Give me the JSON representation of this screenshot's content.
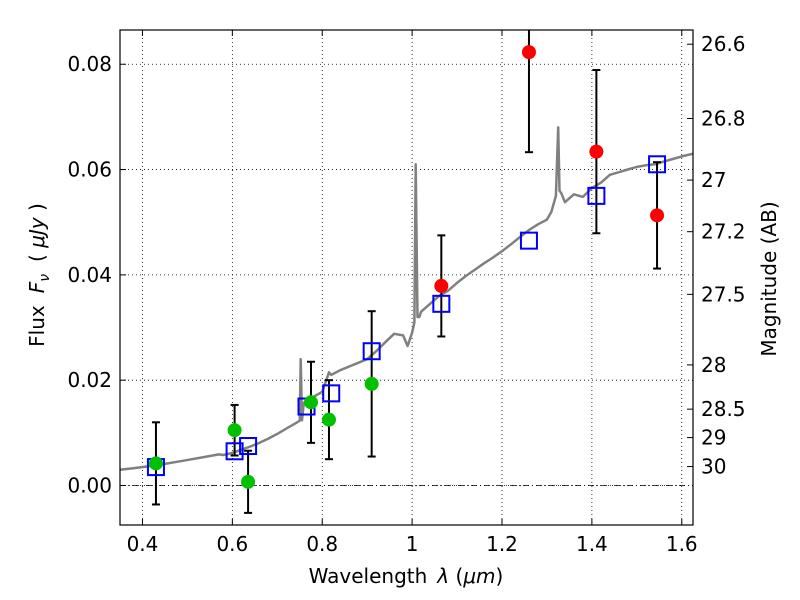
{
  "chart_data": {
    "type": "scatter",
    "xlabel": "Wavelength",
    "xlabel_symbol": "λ",
    "xlabel_unit_open": " (",
    "xlabel_unit": "μm",
    "xlabel_unit_close": ")",
    "ylabel_prefix": "Flux",
    "ylabel_symbol": "F",
    "ylabel_subscript": "ν",
    "ylabel_unit_open": "( ",
    "ylabel_unit": "μJy",
    "ylabel_unit_close": " )",
    "y2label": "Magnitude (AB)",
    "xlim": [
      0.35,
      1.625
    ],
    "ylim": [
      -0.0075,
      0.0865
    ],
    "grid": true,
    "grid_style": "dotted",
    "x_ticks": [
      {
        "value": 0.4,
        "label": "0.4"
      },
      {
        "value": 0.6,
        "label": "0.6"
      },
      {
        "value": 0.8,
        "label": "0.8"
      },
      {
        "value": 1.0,
        "label": "1"
      },
      {
        "value": 1.2,
        "label": "1.2"
      },
      {
        "value": 1.4,
        "label": "1.4"
      },
      {
        "value": 1.6,
        "label": "1.6"
      }
    ],
    "y_ticks": [
      {
        "value": 0.0,
        "label": "0.00"
      },
      {
        "value": 0.02,
        "label": "0.02"
      },
      {
        "value": 0.04,
        "label": "0.04"
      },
      {
        "value": 0.06,
        "label": "0.06"
      },
      {
        "value": 0.08,
        "label": "0.08"
      }
    ],
    "y2_ticks": [
      {
        "flux": 0.0838,
        "label": "26.6"
      },
      {
        "flux": 0.0697,
        "label": "26.8"
      },
      {
        "flux": 0.058,
        "label": "27"
      },
      {
        "flux": 0.0482,
        "label": "27.2"
      },
      {
        "flux": 0.0363,
        "label": "27.5"
      },
      {
        "flux": 0.0229,
        "label": "28"
      },
      {
        "flux": 0.0145,
        "label": "28.5"
      },
      {
        "flux": 0.0091,
        "label": "29"
      },
      {
        "flux": 0.0036,
        "label": "30"
      }
    ],
    "zero_line": {
      "y": 0.0,
      "style": "dash-dot",
      "color": "#000000"
    },
    "model_spectrum": {
      "color": "#808080",
      "x": [
        0.35,
        0.37,
        0.39,
        0.41,
        0.43,
        0.45,
        0.47,
        0.49,
        0.51,
        0.53,
        0.55,
        0.57,
        0.58,
        0.6,
        0.62,
        0.64,
        0.66,
        0.68,
        0.7,
        0.72,
        0.74,
        0.75,
        0.752,
        0.755,
        0.758,
        0.76,
        0.78,
        0.8,
        0.815,
        0.82,
        0.84,
        0.86,
        0.88,
        0.9,
        0.92,
        0.94,
        0.96,
        0.98,
        0.99,
        1.0,
        1.005,
        1.008,
        1.012,
        1.016,
        1.02,
        1.04,
        1.06,
        1.08,
        1.1,
        1.12,
        1.14,
        1.16,
        1.18,
        1.2,
        1.22,
        1.24,
        1.26,
        1.28,
        1.3,
        1.31,
        1.32,
        1.325,
        1.328,
        1.332,
        1.34,
        1.36,
        1.38,
        1.4,
        1.42,
        1.44,
        1.46,
        1.48,
        1.5,
        1.52,
        1.54,
        1.56,
        1.58,
        1.6,
        1.625
      ],
      "y": [
        0.003,
        0.0032,
        0.0034,
        0.0036,
        0.0038,
        0.0041,
        0.0044,
        0.0047,
        0.005,
        0.0053,
        0.0056,
        0.0059,
        0.0058,
        0.0062,
        0.0068,
        0.0074,
        0.0081,
        0.0089,
        0.0098,
        0.0108,
        0.0118,
        0.0123,
        0.024,
        0.0124,
        0.015,
        0.0158,
        0.0168,
        0.0178,
        0.0215,
        0.021,
        0.0219,
        0.0226,
        0.0233,
        0.024,
        0.0255,
        0.0272,
        0.0288,
        0.0285,
        0.0265,
        0.029,
        0.031,
        0.061,
        0.032,
        0.032,
        0.033,
        0.0345,
        0.036,
        0.037,
        0.0385,
        0.0398,
        0.041,
        0.0422,
        0.0433,
        0.0445,
        0.0458,
        0.0472,
        0.0485,
        0.0496,
        0.0505,
        0.052,
        0.055,
        0.068,
        0.056,
        0.0555,
        0.0538,
        0.0553,
        0.0548,
        0.0565,
        0.0575,
        0.059,
        0.0595,
        0.06,
        0.0605,
        0.0608,
        0.061,
        0.0615,
        0.062,
        0.0625,
        0.063
      ]
    },
    "model_points": {
      "color": "#0000ff",
      "marker": "open-square",
      "x": [
        0.43,
        0.605,
        0.635,
        0.765,
        0.82,
        0.91,
        1.065,
        1.26,
        1.41,
        1.545
      ],
      "y": [
        0.0035,
        0.0065,
        0.0075,
        0.015,
        0.0175,
        0.0255,
        0.0345,
        0.0465,
        0.055,
        0.061
      ]
    },
    "detections": [
      {
        "x": 0.43,
        "y": 0.0042,
        "err": 0.0078,
        "color": "#00c000"
      },
      {
        "x": 0.605,
        "y": 0.0105,
        "err": 0.0048,
        "color": "#00c000"
      },
      {
        "x": 0.635,
        "y": 0.0007,
        "err": 0.0059,
        "color": "#00c000"
      },
      {
        "x": 0.775,
        "y": 0.0158,
        "err": 0.0077,
        "color": "#00c000"
      },
      {
        "x": 0.815,
        "y": 0.0125,
        "err": 0.0075,
        "color": "#00c000"
      },
      {
        "x": 0.91,
        "y": 0.0193,
        "err": 0.0138,
        "color": "#00c000"
      },
      {
        "x": 1.065,
        "y": 0.0379,
        "err": 0.0096,
        "color": "#ff0000"
      },
      {
        "x": 1.26,
        "y": 0.0823,
        "err": 0.019,
        "color": "#ff0000"
      },
      {
        "x": 1.41,
        "y": 0.0634,
        "err": 0.0155,
        "color": "#ff0000"
      },
      {
        "x": 1.545,
        "y": 0.0513,
        "err": 0.0101,
        "color": "#ff0000"
      }
    ]
  }
}
